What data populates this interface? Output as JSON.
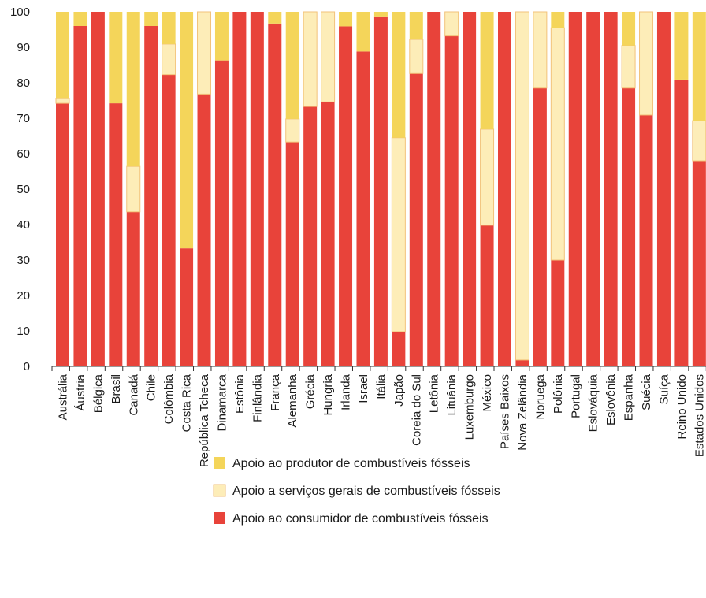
{
  "chart_data": {
    "type": "bar",
    "stacked": true,
    "ylim": [
      0,
      100
    ],
    "yticks": [
      0,
      10,
      20,
      30,
      40,
      50,
      60,
      70,
      80,
      90,
      100
    ],
    "grid": false,
    "legend_position": "bottom",
    "colors": {
      "producer": "#f4d55a",
      "services": "#fdedb8",
      "services_edge": "#f2c27a",
      "consumer": "#e8433a"
    },
    "categories": [
      "Austrália",
      "Áustria",
      "Bélgica",
      "Brasil",
      "Canadá",
      "Chile",
      "Colômbia",
      "Costa Rica",
      "República Tcheca",
      "Dinamarca",
      "Estônia",
      "Finlândia",
      "França",
      "Alemanha",
      "Grécia",
      "Hungria",
      "Irlanda",
      "Israel",
      "Itália",
      "Japão",
      "Coreia do Sul",
      "Letônia",
      "Lituânia",
      "Luxemburgo",
      "México",
      "Países Baixos",
      "Nova Zelândia",
      "Noruega",
      "Polônia",
      "Portugal",
      "Eslováquia",
      "Eslovênia",
      "Espanha",
      "Suécia",
      "Suíça",
      "Reino Unido",
      "Estados Unidos"
    ],
    "series": [
      {
        "name": "Apoio ao consumidor de combustíveis fósseis",
        "key": "consumer",
        "values": [
          74.2,
          96,
          100,
          74.2,
          43.6,
          96,
          82.3,
          33.3,
          76.8,
          86.3,
          100,
          100,
          96.7,
          63.3,
          73.3,
          74.6,
          95.9,
          88.8,
          98.7,
          9.8,
          82.6,
          100,
          93.2,
          100,
          39.8,
          100,
          1.8,
          78.5,
          30,
          100,
          100,
          100,
          78.5,
          70.9,
          100,
          80.9,
          58
        ]
      },
      {
        "name": "Apoio a serviços gerais de combustíveis fósseis",
        "key": "services",
        "values": [
          1.3,
          0,
          0,
          0,
          12.8,
          0,
          8.6,
          0,
          23.2,
          0,
          0,
          0,
          0,
          6.5,
          26.7,
          25.4,
          0,
          0,
          0,
          54.7,
          9.6,
          0,
          6.8,
          0,
          27.1,
          0,
          98.2,
          21.5,
          65.5,
          0,
          0,
          0,
          12,
          29.1,
          0,
          0,
          11.3
        ]
      },
      {
        "name": "Apoio ao produtor de combustíveis fósseis",
        "key": "producer",
        "values": [
          24.5,
          4,
          0,
          25.8,
          43.6,
          4,
          9.1,
          66.7,
          0,
          13.7,
          0,
          0,
          3.3,
          30.2,
          0,
          0,
          4.1,
          11.2,
          1.3,
          35.5,
          7.8,
          0,
          0,
          0,
          33.1,
          0,
          0,
          0,
          4.5,
          0,
          0,
          0,
          9.5,
          0,
          0,
          19.1,
          30.7
        ]
      }
    ]
  },
  "legend": [
    {
      "key": "producer",
      "label": "Apoio ao produtor de combustíveis fósseis"
    },
    {
      "key": "services",
      "label": "Apoio a serviços gerais de combustíveis fósseis"
    },
    {
      "key": "consumer",
      "label": "Apoio ao consumidor de combustíveis fósseis"
    }
  ]
}
